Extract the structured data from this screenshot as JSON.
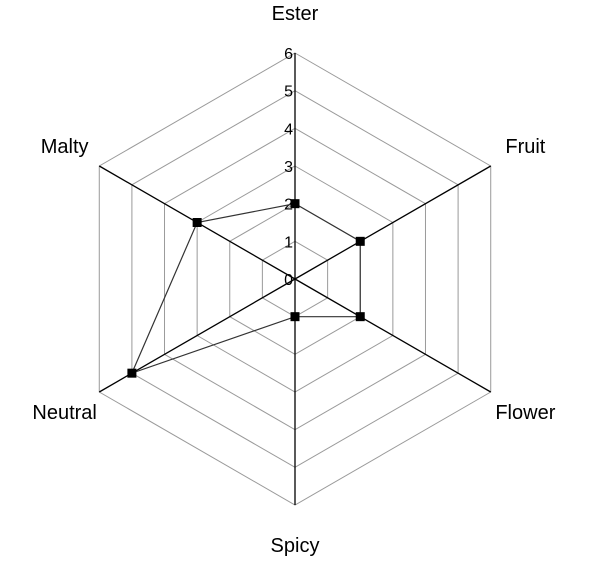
{
  "chart_data": {
    "type": "radar",
    "categories": [
      "Ester",
      "Fruit",
      "Flower",
      "Spicy",
      "Neutral",
      "Malty"
    ],
    "values": [
      2,
      2,
      2,
      1,
      5,
      3
    ],
    "rlim": [
      0,
      6
    ],
    "ticks": [
      "0",
      "1",
      "2",
      "3",
      "4",
      "5",
      "6"
    ],
    "grid": true,
    "legend": "none",
    "colors": {
      "grid": "#9a9a9a",
      "axis": "#000000",
      "series": "#333333",
      "marker": "#000000"
    }
  }
}
